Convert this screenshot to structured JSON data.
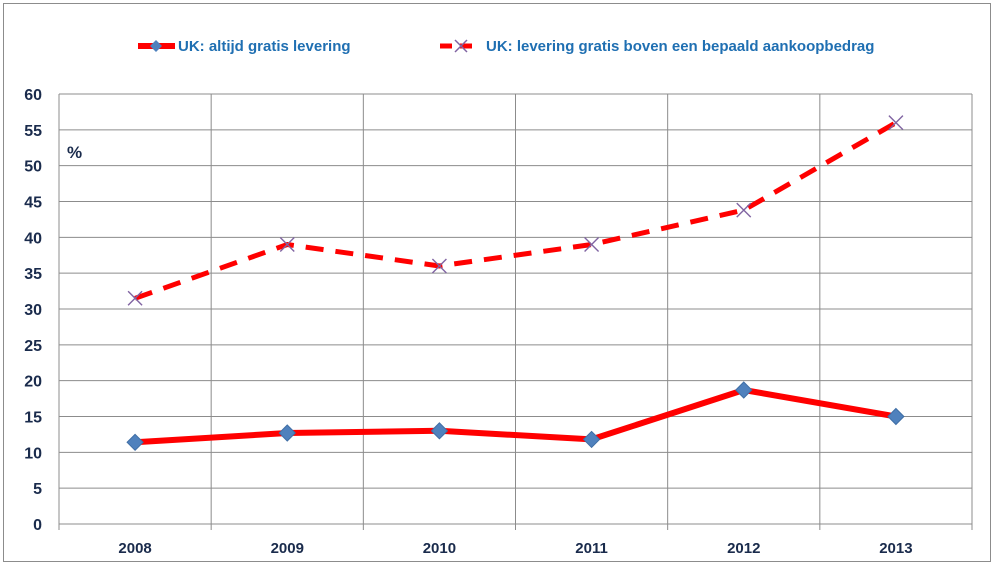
{
  "chart_data": {
    "type": "line",
    "title": "",
    "xlabel": "",
    "ylabel": "%",
    "ylim": [
      0,
      60
    ],
    "ytick_step": 5,
    "grid": true,
    "legend_position": "top",
    "categories": [
      "2008",
      "2009",
      "2010",
      "2011",
      "2012",
      "2013"
    ],
    "series": [
      {
        "name": "UK: altijd gratis  levering",
        "values": [
          11.4,
          12.7,
          13.0,
          11.8,
          18.7,
          15.0
        ],
        "line_color": "#ff0000",
        "marker_color": "#4f81bd",
        "line_style": "solid",
        "marker": "diamond"
      },
      {
        "name": "UK: levering gratis boven een bepaald aankoopbedrag",
        "values": [
          31.5,
          39.0,
          36.0,
          39.0,
          43.8,
          56.0
        ],
        "line_color": "#ff0000",
        "marker_color": "#8064a2",
        "line_style": "dashed",
        "marker": "x"
      }
    ]
  }
}
